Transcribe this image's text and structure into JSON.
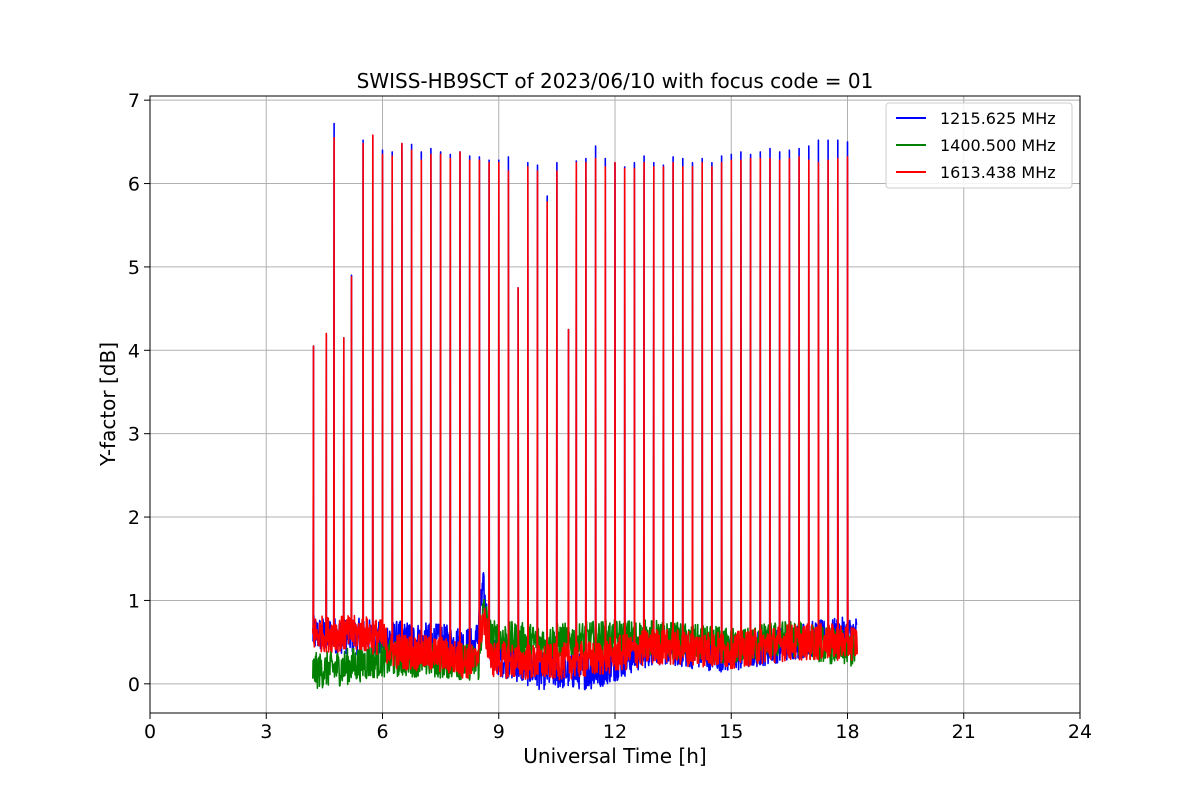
{
  "chart_data": {
    "type": "line",
    "title": "SWISS-HB9SCT of 2023/06/10 with focus code = 01",
    "xlabel": "Universal Time [h]",
    "ylabel": "Y-factor [dB]",
    "xlim": [
      0,
      24
    ],
    "ylim": [
      -0.35,
      7.05
    ],
    "xticks": [
      0,
      3,
      6,
      9,
      12,
      15,
      18,
      21,
      24
    ],
    "yticks": [
      0,
      1,
      2,
      3,
      4,
      5,
      6,
      7
    ],
    "grid": true,
    "legend_position": "top-right",
    "data_range_x": [
      4.2,
      18.25
    ],
    "series": [
      {
        "name": "1215.625 MHz",
        "color": "#0000ff",
        "baseline": [
          [
            4.2,
            0.6
          ],
          [
            6.0,
            0.55
          ],
          [
            7.5,
            0.5
          ],
          [
            8.4,
            0.45
          ],
          [
            8.6,
            1.15
          ],
          [
            8.8,
            0.35
          ],
          [
            10.0,
            0.15
          ],
          [
            11.5,
            0.15
          ],
          [
            13.0,
            0.45
          ],
          [
            15.0,
            0.35
          ],
          [
            16.5,
            0.5
          ],
          [
            18.25,
            0.6
          ]
        ],
        "noise": 0.22,
        "peaks": [
          [
            4.22,
            4.05
          ],
          [
            4.55,
            4.2
          ],
          [
            4.75,
            6.72
          ],
          [
            5.0,
            4.15
          ],
          [
            5.2,
            4.9
          ],
          [
            5.5,
            6.52
          ],
          [
            5.75,
            6.58
          ],
          [
            6.0,
            6.4
          ],
          [
            6.25,
            6.38
          ],
          [
            6.5,
            6.48
          ],
          [
            6.75,
            6.47
          ],
          [
            7.0,
            6.38
          ],
          [
            7.25,
            6.42
          ],
          [
            7.5,
            6.38
          ],
          [
            7.75,
            6.35
          ],
          [
            8.0,
            6.38
          ],
          [
            8.25,
            6.33
          ],
          [
            8.5,
            6.32
          ],
          [
            8.75,
            6.28
          ],
          [
            9.0,
            6.28
          ],
          [
            9.25,
            6.32
          ],
          [
            9.5,
            4.75
          ],
          [
            9.75,
            6.25
          ],
          [
            10.0,
            6.22
          ],
          [
            10.25,
            5.85
          ],
          [
            10.5,
            6.25
          ],
          [
            10.8,
            4.25
          ],
          [
            11.0,
            6.27
          ],
          [
            11.25,
            6.3
          ],
          [
            11.5,
            6.45
          ],
          [
            11.75,
            6.3
          ],
          [
            12.0,
            6.25
          ],
          [
            12.25,
            6.2
          ],
          [
            12.5,
            6.25
          ],
          [
            12.75,
            6.33
          ],
          [
            13.0,
            6.25
          ],
          [
            13.25,
            6.22
          ],
          [
            13.5,
            6.32
          ],
          [
            13.75,
            6.3
          ],
          [
            14.0,
            6.25
          ],
          [
            14.25,
            6.3
          ],
          [
            14.5,
            6.25
          ],
          [
            14.75,
            6.33
          ],
          [
            15.0,
            6.35
          ],
          [
            15.25,
            6.38
          ],
          [
            15.5,
            6.35
          ],
          [
            15.75,
            6.38
          ],
          [
            16.0,
            6.42
          ],
          [
            16.25,
            6.38
          ],
          [
            16.5,
            6.4
          ],
          [
            16.75,
            6.42
          ],
          [
            17.0,
            6.45
          ],
          [
            17.25,
            6.52
          ],
          [
            17.5,
            6.52
          ],
          [
            17.75,
            6.52
          ],
          [
            18.0,
            6.5
          ]
        ]
      },
      {
        "name": "1400.500 MHz",
        "color": "#008000",
        "baseline": [
          [
            4.2,
            0.15
          ],
          [
            5.0,
            0.2
          ],
          [
            6.0,
            0.3
          ],
          [
            7.0,
            0.3
          ],
          [
            8.5,
            0.25
          ],
          [
            8.6,
            0.9
          ],
          [
            8.8,
            0.55
          ],
          [
            10.0,
            0.5
          ],
          [
            12.0,
            0.55
          ],
          [
            13.0,
            0.55
          ],
          [
            15.0,
            0.45
          ],
          [
            16.5,
            0.55
          ],
          [
            18.25,
            0.4
          ]
        ],
        "noise": 0.22,
        "peaks": []
      },
      {
        "name": "1613.438 MHz",
        "color": "#ff0000",
        "baseline": [
          [
            4.2,
            0.6
          ],
          [
            5.5,
            0.6
          ],
          [
            6.0,
            0.55
          ],
          [
            6.2,
            0.4
          ],
          [
            7.5,
            0.35
          ],
          [
            8.4,
            0.25
          ],
          [
            8.6,
            0.8
          ],
          [
            8.8,
            0.3
          ],
          [
            10.0,
            0.25
          ],
          [
            11.5,
            0.3
          ],
          [
            13.0,
            0.45
          ],
          [
            15.0,
            0.4
          ],
          [
            16.5,
            0.5
          ],
          [
            18.25,
            0.5
          ]
        ],
        "noise": 0.22,
        "peaks": [
          [
            4.22,
            4.05
          ],
          [
            4.55,
            4.2
          ],
          [
            4.75,
            6.55
          ],
          [
            5.0,
            4.15
          ],
          [
            5.2,
            4.88
          ],
          [
            5.5,
            6.48
          ],
          [
            5.75,
            6.58
          ],
          [
            6.0,
            6.35
          ],
          [
            6.25,
            6.33
          ],
          [
            6.5,
            6.48
          ],
          [
            6.75,
            6.4
          ],
          [
            7.0,
            6.28
          ],
          [
            7.25,
            6.35
          ],
          [
            7.5,
            6.35
          ],
          [
            7.75,
            6.3
          ],
          [
            8.0,
            6.38
          ],
          [
            8.25,
            6.28
          ],
          [
            8.5,
            6.28
          ],
          [
            8.75,
            6.25
          ],
          [
            9.0,
            6.25
          ],
          [
            9.25,
            6.15
          ],
          [
            9.5,
            4.75
          ],
          [
            9.75,
            6.2
          ],
          [
            10.0,
            6.15
          ],
          [
            10.25,
            5.78
          ],
          [
            10.5,
            6.15
          ],
          [
            10.8,
            4.25
          ],
          [
            11.0,
            6.25
          ],
          [
            11.25,
            6.25
          ],
          [
            11.5,
            6.3
          ],
          [
            11.75,
            6.2
          ],
          [
            12.0,
            6.25
          ],
          [
            12.25,
            6.18
          ],
          [
            12.5,
            6.18
          ],
          [
            12.75,
            6.25
          ],
          [
            13.0,
            6.2
          ],
          [
            13.25,
            6.2
          ],
          [
            13.5,
            6.25
          ],
          [
            13.75,
            6.2
          ],
          [
            14.0,
            6.2
          ],
          [
            14.25,
            6.25
          ],
          [
            14.5,
            6.2
          ],
          [
            14.75,
            6.25
          ],
          [
            15.0,
            6.28
          ],
          [
            15.25,
            6.28
          ],
          [
            15.5,
            6.3
          ],
          [
            15.75,
            6.3
          ],
          [
            16.0,
            6.3
          ],
          [
            16.25,
            6.28
          ],
          [
            16.5,
            6.3
          ],
          [
            16.75,
            6.32
          ],
          [
            17.0,
            6.28
          ],
          [
            17.25,
            6.25
          ],
          [
            17.5,
            6.28
          ],
          [
            17.75,
            6.3
          ],
          [
            18.0,
            6.32
          ]
        ]
      }
    ]
  }
}
